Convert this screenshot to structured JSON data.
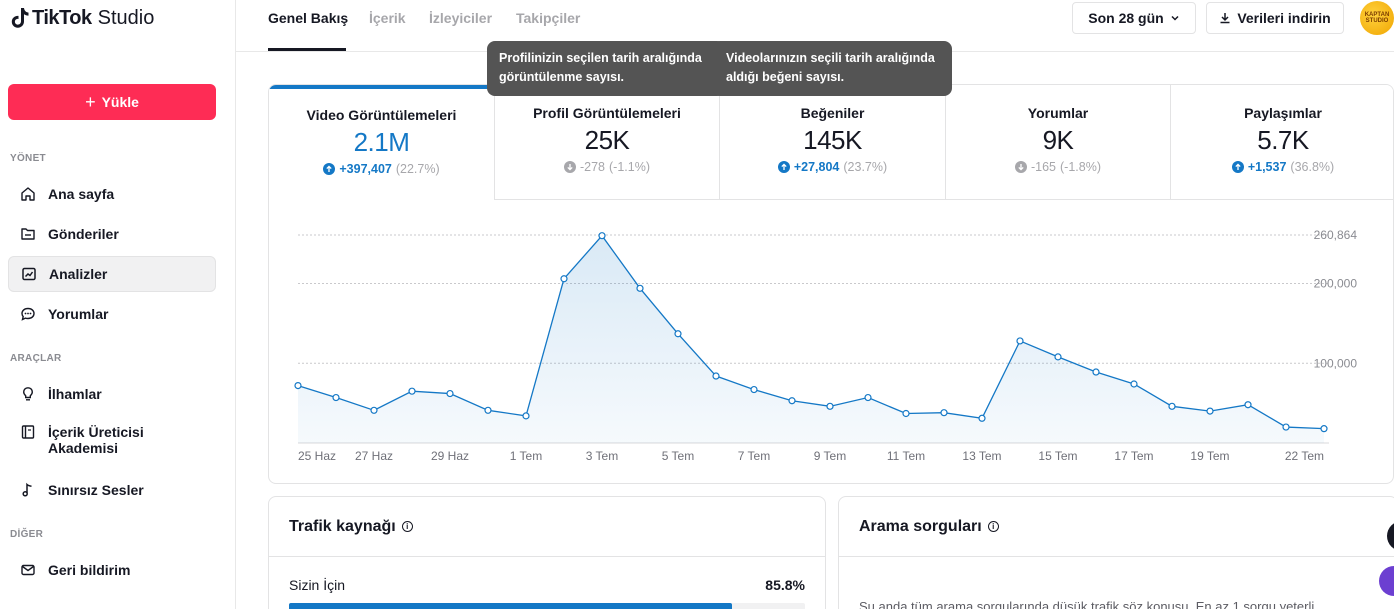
{
  "app": {
    "logo_brand": "TikTok",
    "logo_suffix": "Studio"
  },
  "sidebar": {
    "upload_label": "Yükle",
    "sections": {
      "manage": "YÖNET",
      "tools": "ARAÇLAR",
      "other": "DİĞER"
    },
    "items": [
      {
        "label": "Ana sayfa",
        "icon": "home-icon"
      },
      {
        "label": "Gönderiler",
        "icon": "folder-icon"
      },
      {
        "label": "Analizler",
        "icon": "analytics-icon",
        "active": true
      },
      {
        "label": "Yorumlar",
        "icon": "comment-icon"
      },
      {
        "label": "İlhamlar",
        "icon": "lightbulb-icon"
      },
      {
        "label": "İçerik Üreticisi Akademisi",
        "icon": "academy-icon"
      },
      {
        "label": "Sınırsız Sesler",
        "icon": "music-note-icon"
      },
      {
        "label": "Geri bildirim",
        "icon": "mail-icon"
      }
    ]
  },
  "header": {
    "tabs": [
      {
        "label": "Genel Bakış",
        "active": true
      },
      {
        "label": "İçerik"
      },
      {
        "label": "İzleyiciler"
      },
      {
        "label": "Takipçiler"
      }
    ],
    "period_label": "Son 28 gün",
    "download_label": "Verileri indirin",
    "avatar_text": "KAPTAN STUDIO"
  },
  "tooltips": {
    "profile": "Profilinizin seçilen tarih aralığında görüntülenme sayısı.",
    "likes": "Videolarınızın seçili tarih aralığında aldığı beğeni sayısı."
  },
  "metrics": [
    {
      "title": "Video Görüntülemeleri",
      "value": "2.1M",
      "delta": "+397,407",
      "pct": "(22.7%)",
      "trend": "up",
      "active": true
    },
    {
      "title": "Profil Görüntülemeleri",
      "value": "25K",
      "delta": "-278",
      "pct": "(-1.1%)",
      "trend": "down"
    },
    {
      "title": "Beğeniler",
      "value": "145K",
      "delta": "+27,804",
      "pct": "(23.7%)",
      "trend": "up"
    },
    {
      "title": "Yorumlar",
      "value": "9K",
      "delta": "-165",
      "pct": "(-1.8%)",
      "trend": "down"
    },
    {
      "title": "Paylaşımlar",
      "value": "5.7K",
      "delta": "+1,537",
      "pct": "(36.8%)",
      "trend": "up"
    }
  ],
  "chart_data": {
    "type": "area",
    "title": "",
    "xlabel": "",
    "ylabel": "",
    "ylim": [
      0,
      260864
    ],
    "y_ticks": [
      {
        "value": 100000,
        "label": "100,000"
      },
      {
        "value": 200000,
        "label": "200,000"
      },
      {
        "value": 260864,
        "label": "260,864"
      }
    ],
    "x_tick_labels": [
      "25 Haz",
      "27 Haz",
      "29 Haz",
      "1 Tem",
      "3 Tem",
      "5 Tem",
      "7 Tem",
      "9 Tem",
      "11 Tem",
      "13 Tem",
      "15 Tem",
      "17 Tem",
      "19 Tem",
      "22 Tem"
    ],
    "categories": [
      "25 Haz",
      "26 Haz",
      "27 Haz",
      "28 Haz",
      "29 Haz",
      "30 Haz",
      "1 Tem",
      "2 Tem",
      "3 Tem",
      "4 Tem",
      "5 Tem",
      "6 Tem",
      "7 Tem",
      "8 Tem",
      "9 Tem",
      "10 Tem",
      "11 Tem",
      "12 Tem",
      "13 Tem",
      "14 Tem",
      "15 Tem",
      "16 Tem",
      "17 Tem",
      "18 Tem",
      "19 Tem",
      "20 Tem",
      "21 Tem",
      "22 Tem"
    ],
    "series": [
      {
        "values": [
          72000,
          57000,
          41000,
          65000,
          62000,
          41000,
          34000,
          206000,
          260000,
          194000,
          137000,
          84000,
          67000,
          53000,
          46000,
          57000,
          37000,
          38000,
          31000,
          128000,
          108000,
          89000,
          74000,
          46000,
          40000,
          48000,
          20000,
          18000
        ]
      }
    ],
    "grid": true,
    "color": "#1478c6"
  },
  "traffic": {
    "title": "Trafik kaynağı",
    "rows": [
      {
        "label": "Sizin İçin",
        "pct": "85.8%",
        "fraction": 0.858
      }
    ]
  },
  "search": {
    "title": "Arama sorguları",
    "text": "Şu anda tüm arama sorgularında düşük trafik söz konusu. En az 1 sorgu yeterli"
  },
  "colors": {
    "accent": "#1478c6",
    "brand": "#fe2c55"
  }
}
